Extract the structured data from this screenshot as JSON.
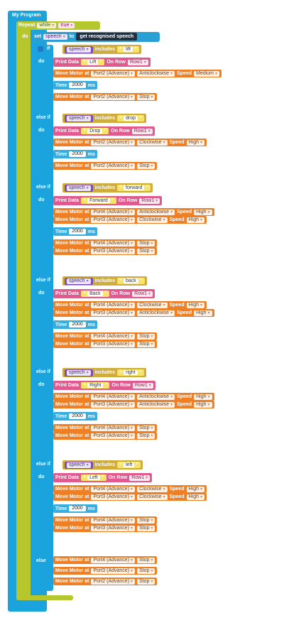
{
  "program_title": "My Program",
  "repeat": {
    "label": "Repeat",
    "mode": "while",
    "condition": "true",
    "do": "do"
  },
  "set_block": {
    "set": "set",
    "variable": "speech",
    "to": "to",
    "value": "get recognised speech"
  },
  "labels": {
    "if": "if",
    "else_if": "else if",
    "else": "else",
    "do": "do",
    "includes": "includes",
    "print_data": "Print Data",
    "on_row": "On Row",
    "move_motor_at": "Move Motor at",
    "speed": "Speed",
    "time": "Time",
    "ms": "ms"
  },
  "branches": [
    {
      "keyword": "lift",
      "print_text": "Lift",
      "row": "Row1",
      "moves": [
        {
          "port": "Port2 (Advance)",
          "dir": "Anticlockwise",
          "speed": "Medium"
        }
      ],
      "time": "2000",
      "stops": [
        {
          "port": "Port2 (Advance)",
          "action": "Stop"
        }
      ]
    },
    {
      "keyword": "drop",
      "print_text": "Drop",
      "row": "Row1",
      "moves": [
        {
          "port": "Port2 (Advance)",
          "dir": "Clockwise",
          "speed": "High"
        }
      ],
      "time": "2000",
      "stops": [
        {
          "port": "Port2 (Advance)",
          "action": "Stop"
        }
      ]
    },
    {
      "keyword": "forward",
      "print_text": "Forward",
      "row": "Row1",
      "moves": [
        {
          "port": "Port4 (Advance)",
          "dir": "Anticlockwise",
          "speed": "High"
        },
        {
          "port": "Port3 (Advance)",
          "dir": "Clockwise",
          "speed": "High"
        }
      ],
      "time": "2000",
      "stops": [
        {
          "port": "Port4 (Advance)",
          "action": "Stop"
        },
        {
          "port": "Port3 (Advance)",
          "action": "Stop"
        }
      ]
    },
    {
      "keyword": "back",
      "print_text": "Back",
      "row": "Row1",
      "moves": [
        {
          "port": "Port4 (Advance)",
          "dir": "Clockwise",
          "speed": "High"
        },
        {
          "port": "Port3 (Advance)",
          "dir": "Anticlockwise",
          "speed": "High"
        }
      ],
      "time": "2000",
      "stops": [
        {
          "port": "Port4 (Advance)",
          "action": "Stop"
        },
        {
          "port": "Port3 (Advance)",
          "action": "Stop"
        }
      ]
    },
    {
      "keyword": "right",
      "print_text": "Right",
      "row": "Row1",
      "moves": [
        {
          "port": "Port4 (Advance)",
          "dir": "Anticlockwise",
          "speed": "High"
        },
        {
          "port": "Port3 (Advance)",
          "dir": "Anticlockwise",
          "speed": "High"
        }
      ],
      "time": "2000",
      "stops": [
        {
          "port": "Port4 (Advance)",
          "action": "Stop"
        },
        {
          "port": "Port3 (Advance)",
          "action": "Stop"
        }
      ]
    },
    {
      "keyword": "left",
      "print_text": "Left",
      "row": "Row1",
      "moves": [
        {
          "port": "Port4 (Advance)",
          "dir": "Clockwise",
          "speed": "High"
        },
        {
          "port": "Port3 (Advance)",
          "dir": "Clockwise",
          "speed": "High"
        }
      ],
      "time": "2000",
      "stops": [
        {
          "port": "Port4 (Advance)",
          "action": "Stop"
        },
        {
          "port": "Port3 (Advance)",
          "action": "Stop"
        }
      ]
    }
  ],
  "else_stops": [
    {
      "port": "Port4 (Advance)",
      "action": "Stop"
    },
    {
      "port": "Port3 (Advance)",
      "action": "Stop"
    },
    {
      "port": "Port2 (Advance)",
      "action": "Stop"
    }
  ]
}
